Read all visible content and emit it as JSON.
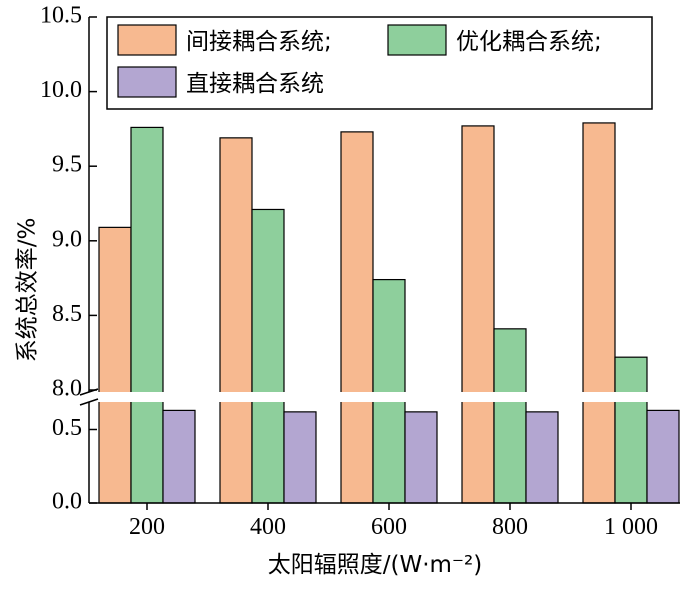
{
  "chart_data": {
    "type": "bar",
    "xlabel": "太阳辐照度/(W·m⁻²)",
    "ylabel": "系统总效率/%",
    "categories": [
      "200",
      "400",
      "600",
      "800",
      "1 000"
    ],
    "series": [
      {
        "name": "间接耦合系统;",
        "color": "#f7b990",
        "values": [
          9.09,
          9.69,
          9.73,
          9.77,
          9.79
        ]
      },
      {
        "name": "优化耦合系统;",
        "color": "#8ecf9c",
        "values": [
          9.76,
          9.21,
          8.74,
          8.41,
          8.22
        ]
      },
      {
        "name": "直接耦合系统",
        "color": "#b3a6d1",
        "values": [
          0.63,
          0.62,
          0.62,
          0.62,
          0.63
        ]
      }
    ],
    "y_axis": {
      "broken": true,
      "lower_segment": {
        "range": [
          0,
          0.7
        ],
        "ticks": [
          "0.0",
          "0.5"
        ]
      },
      "upper_segment": {
        "range": [
          8.0,
          10.5
        ],
        "ticks": [
          "8.0",
          "8.5",
          "9.0",
          "9.5",
          "10.0",
          "10.5"
        ]
      }
    },
    "legend_position": "top",
    "grid": false
  }
}
